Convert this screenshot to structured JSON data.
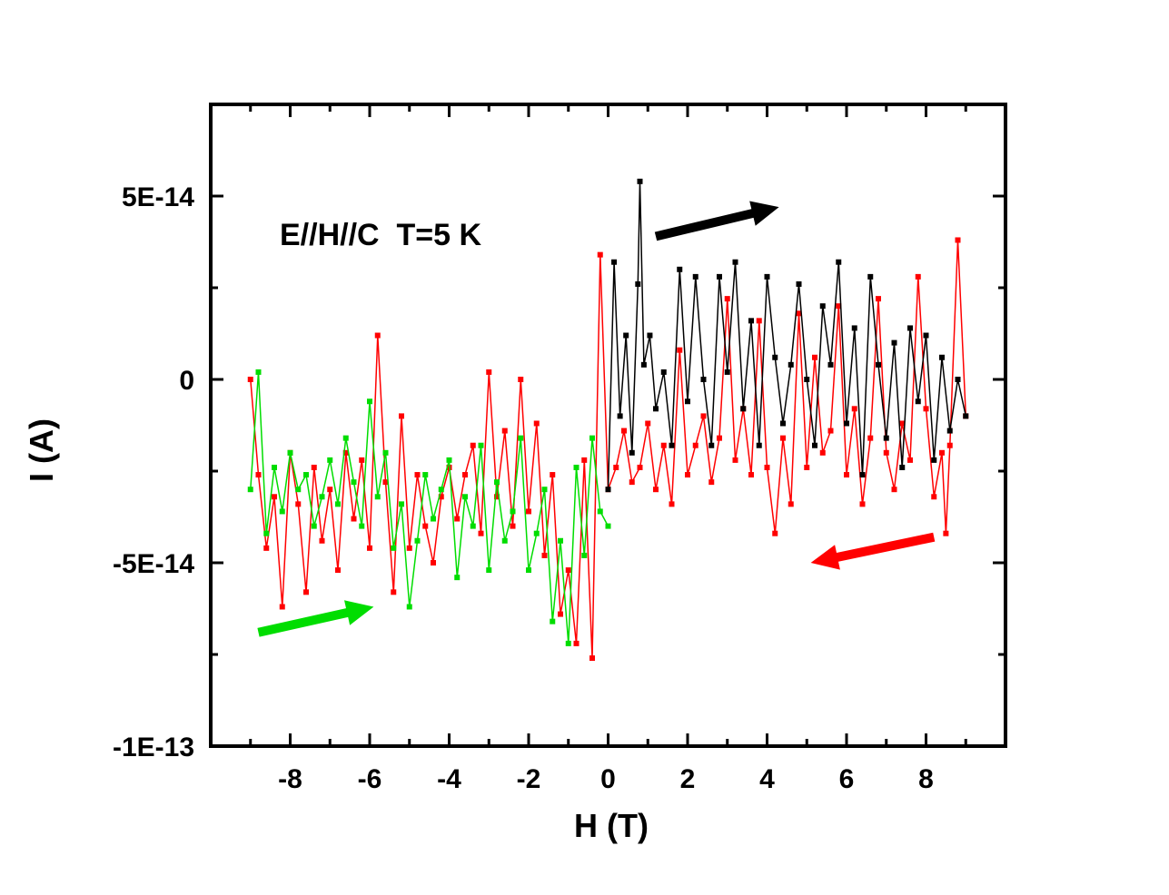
{
  "chart_data": {
    "type": "line",
    "title": "",
    "annotation": "E//H//C  T=5 K",
    "xlabel": "H (T)",
    "ylabel": "I (A)",
    "xlim": [
      -10,
      10
    ],
    "ylim": [
      -1e-13,
      7.5e-14
    ],
    "x_ticks": [
      -8,
      -6,
      -4,
      -2,
      0,
      2,
      4,
      6,
      8
    ],
    "x_tick_labels": [
      "-8",
      "-6",
      "-4",
      "-2",
      "0",
      "2",
      "4",
      "6",
      "8"
    ],
    "y_ticks": [
      5e-14,
      0,
      -5e-14,
      -1e-13
    ],
    "y_tick_labels": [
      "5E-14",
      "0",
      "-5E-14",
      "-1E-13"
    ],
    "grid": false,
    "legend": "none",
    "marker": "square",
    "series": [
      {
        "color": "#ff0000",
        "direction": "decreasing H (9 T to -9 T)",
        "x": [
          9.0,
          8.8,
          8.6,
          8.5,
          8.4,
          8.2,
          8.0,
          7.8,
          7.6,
          7.4,
          7.2,
          7.0,
          6.8,
          6.6,
          6.4,
          6.2,
          6.0,
          5.8,
          5.6,
          5.4,
          5.2,
          5.0,
          4.8,
          4.6,
          4.4,
          4.2,
          4.0,
          3.8,
          3.6,
          3.4,
          3.2,
          3.0,
          2.8,
          2.6,
          2.4,
          2.2,
          2.0,
          1.8,
          1.6,
          1.4,
          1.2,
          1.0,
          0.8,
          0.6,
          0.4,
          0.2,
          0.0,
          -0.2,
          -0.4,
          -0.6,
          -0.8,
          -1.0,
          -1.2,
          -1.4,
          -1.6,
          -1.8,
          -2.0,
          -2.2,
          -2.4,
          -2.6,
          -2.8,
          -3.0,
          -3.2,
          -3.4,
          -3.6,
          -3.8,
          -4.0,
          -4.2,
          -4.4,
          -4.6,
          -4.8,
          -5.0,
          -5.2,
          -5.4,
          -5.6,
          -5.8,
          -6.0,
          -6.2,
          -6.4,
          -6.6,
          -6.8,
          -7.0,
          -7.2,
          -7.4,
          -7.6,
          -7.8,
          -8.0,
          -8.2,
          -8.4,
          -8.6,
          -8.8,
          -9.0
        ],
        "y": [
          -1e-14,
          3.8e-14,
          -1.8e-14,
          -4.2e-14,
          -2e-14,
          -3.2e-14,
          -8e-15,
          2.8e-14,
          -2.2e-14,
          -1.2e-14,
          -3e-14,
          -2e-14,
          2.2e-14,
          -1.6e-14,
          -3.4e-14,
          -8e-15,
          -2.6e-14,
          2e-14,
          -1.4e-14,
          -2e-14,
          6e-15,
          -2.4e-14,
          1.8e-14,
          -3.4e-14,
          -1.6e-14,
          -4.2e-14,
          -2.4e-14,
          1.6e-14,
          -2.6e-14,
          -8e-15,
          -2.2e-14,
          2.2e-14,
          -1.6e-14,
          -2.8e-14,
          -1e-14,
          -1.8e-14,
          -2.6e-14,
          8e-15,
          -3.4e-14,
          -1.8e-14,
          -3e-14,
          -1.2e-14,
          -2.4e-14,
          -2.8e-14,
          -1.4e-14,
          -2.4e-14,
          -3e-14,
          3.4e-14,
          -7.6e-14,
          -2.2e-14,
          -7.2e-14,
          -5.2e-14,
          -6.4e-14,
          -2.6e-14,
          -4.8e-14,
          -1.2e-14,
          -3.6e-14,
          0.0,
          -4e-14,
          -1.4e-14,
          -3.2e-14,
          2e-15,
          -4.2e-14,
          -1.8e-14,
          -2.6e-14,
          -3.8e-14,
          -2.4e-14,
          -3.2e-14,
          -5e-14,
          -4e-14,
          -2.6e-14,
          -4.6e-14,
          -1e-14,
          -5.8e-14,
          -2.8e-14,
          1.2e-14,
          -4.6e-14,
          -2.2e-14,
          -3.8e-14,
          -2e-14,
          -5.2e-14,
          -3e-14,
          -4.4e-14,
          -2.4e-14,
          -5.8e-14,
          -3.4e-14,
          -2e-14,
          -6.2e-14,
          -3.2e-14,
          -4.6e-14,
          -2.6e-14,
          0.0
        ]
      },
      {
        "color": "#00dd00",
        "direction": "increasing H (-9 T to 0 T)",
        "x": [
          -9.0,
          -8.8,
          -8.6,
          -8.4,
          -8.2,
          -8.0,
          -7.8,
          -7.6,
          -7.4,
          -7.2,
          -7.0,
          -6.8,
          -6.6,
          -6.4,
          -6.2,
          -6.0,
          -5.8,
          -5.6,
          -5.4,
          -5.2,
          -5.0,
          -4.8,
          -4.6,
          -4.4,
          -4.2,
          -4.0,
          -3.8,
          -3.6,
          -3.4,
          -3.2,
          -3.0,
          -2.8,
          -2.6,
          -2.4,
          -2.2,
          -2.0,
          -1.8,
          -1.6,
          -1.4,
          -1.2,
          -1.0,
          -0.8,
          -0.6,
          -0.4,
          -0.2,
          0.0
        ],
        "y": [
          -3e-14,
          2e-15,
          -4.2e-14,
          -2.4e-14,
          -3.6e-14,
          -2e-14,
          -3e-14,
          -2.6e-14,
          -4e-14,
          -3.2e-14,
          -2.2e-14,
          -3.4e-14,
          -1.6e-14,
          -2.8e-14,
          -4e-14,
          -6e-15,
          -3.2e-14,
          -2e-14,
          -4.6e-14,
          -3.4e-14,
          -6.2e-14,
          -4.4e-14,
          -2.6e-14,
          -3.8e-14,
          -3e-14,
          -2.2e-14,
          -5.4e-14,
          -3.2e-14,
          -4e-14,
          -1.8e-14,
          -5.2e-14,
          -2.8e-14,
          -4.4e-14,
          -3.6e-14,
          -1.6e-14,
          -5.2e-14,
          -4.2e-14,
          -3e-14,
          -6.6e-14,
          -4.4e-14,
          -7.2e-14,
          -2.4e-14,
          -4.8e-14,
          -1.6e-14,
          -3.6e-14,
          -4e-14
        ]
      },
      {
        "color": "#000000",
        "direction": "increasing H (0 T to 9 T)",
        "x": [
          0.0,
          0.15,
          0.3,
          0.45,
          0.6,
          0.75,
          0.8,
          0.9,
          1.05,
          1.2,
          1.4,
          1.6,
          1.8,
          2.0,
          2.2,
          2.4,
          2.6,
          2.8,
          3.0,
          3.2,
          3.4,
          3.6,
          3.8,
          4.0,
          4.2,
          4.4,
          4.6,
          4.8,
          5.0,
          5.2,
          5.4,
          5.6,
          5.8,
          6.0,
          6.2,
          6.4,
          6.6,
          6.8,
          7.0,
          7.2,
          7.4,
          7.6,
          7.8,
          8.0,
          8.2,
          8.4,
          8.6,
          8.8,
          9.0
        ],
        "y": [
          -3e-14,
          3.2e-14,
          -1e-14,
          1.2e-14,
          -2e-14,
          2.6e-14,
          5.4e-14,
          4e-15,
          1.2e-14,
          -8e-15,
          2e-15,
          -1.8e-14,
          3e-14,
          -6e-15,
          2.8e-14,
          0.0,
          -1.8e-14,
          2.8e-14,
          2e-15,
          3.2e-14,
          -8e-15,
          1.6e-14,
          -1.8e-14,
          2.8e-14,
          6e-15,
          -1.2e-14,
          4e-15,
          2.6e-14,
          0.0,
          -1.8e-14,
          2e-14,
          4e-15,
          3.2e-14,
          -1.2e-14,
          1.4e-14,
          -2.6e-14,
          2.8e-14,
          4e-15,
          -1.6e-14,
          1e-14,
          -2.4e-14,
          1.4e-14,
          -6e-15,
          1.2e-14,
          -2.2e-14,
          6e-15,
          -1.4e-14,
          0.0,
          -1e-14
        ]
      }
    ],
    "arrows": [
      {
        "color": "#000000",
        "from": [
          1.2,
          3.9e-14
        ],
        "to": [
          4.3,
          4.7e-14
        ]
      },
      {
        "color": "#ff0000",
        "from": [
          8.2,
          -4.3e-14
        ],
        "to": [
          5.1,
          -5e-14
        ]
      },
      {
        "color": "#00dd00",
        "from": [
          -8.8,
          -6.9e-14
        ],
        "to": [
          -5.9,
          -6.2e-14
        ]
      }
    ]
  }
}
